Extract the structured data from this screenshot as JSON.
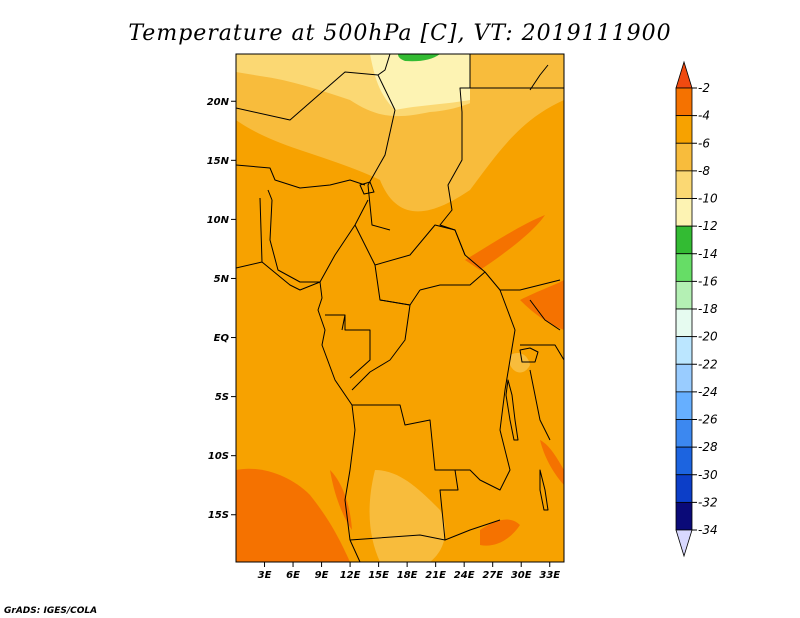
{
  "title": "Temperature at 500hPa [C], VT: 2019111900",
  "credit": "GrADS: IGES/COLA",
  "map": {
    "lon_range": [
      0,
      34.5
    ],
    "lat_range": [
      -19,
      24
    ],
    "x_ticks": [
      {
        "lon": 3,
        "label": "3E"
      },
      {
        "lon": 6,
        "label": "6E"
      },
      {
        "lon": 9,
        "label": "9E"
      },
      {
        "lon": 12,
        "label": "12E"
      },
      {
        "lon": 15,
        "label": "15E"
      },
      {
        "lon": 18,
        "label": "18E"
      },
      {
        "lon": 21,
        "label": "21E"
      },
      {
        "lon": 24,
        "label": "24E"
      },
      {
        "lon": 27,
        "label": "27E"
      },
      {
        "lon": 30,
        "label": "30E"
      },
      {
        "lon": 33,
        "label": "33E"
      }
    ],
    "y_ticks": [
      {
        "lat": 20,
        "label": "20N"
      },
      {
        "lat": 15,
        "label": "15N"
      },
      {
        "lat": 10,
        "label": "10N"
      },
      {
        "lat": 5,
        "label": "5N"
      },
      {
        "lat": 0,
        "label": "EQ"
      },
      {
        "lat": -5,
        "label": "5S"
      },
      {
        "lat": -10,
        "label": "10S"
      },
      {
        "lat": -15,
        "label": "15S"
      }
    ],
    "base_color": "#f7a200"
  },
  "colorbar": {
    "levels": [
      "-2",
      "-4",
      "-6",
      "-8",
      "-10",
      "-12",
      "-14",
      "-16",
      "-18",
      "-20",
      "-22",
      "-24",
      "-26",
      "-28",
      "-30",
      "-32",
      "-34"
    ],
    "colors": [
      "#f04a10",
      "#f57200",
      "#f7a200",
      "#f8bc3c",
      "#fbd873",
      "#fdf3b3",
      "#33bb33",
      "#66dd66",
      "#b4f0b4",
      "#e6fbf0",
      "#bbe6ff",
      "#99ccff",
      "#66afff",
      "#3c88f0",
      "#1c64e0",
      "#0c3ec8",
      "#0a0a78",
      "#d8d8ff"
    ],
    "triangle_top_color": "#f04a10",
    "triangle_bottom_color": "#d8d8ff"
  },
  "chart_data": {
    "type": "heatmap",
    "title": "Temperature at 500hPa [C], VT: 2019111900",
    "variable": "Temperature at 500hPa",
    "units": "C",
    "valid_time": "2019111900",
    "x": [
      "3E",
      "6E",
      "9E",
      "12E",
      "15E",
      "18E",
      "21E",
      "24E",
      "27E",
      "30E",
      "33E"
    ],
    "y": [
      "20N",
      "15N",
      "10N",
      "5N",
      "EQ",
      "5S",
      "10S",
      "15S"
    ],
    "legend_levels": [
      -2,
      -4,
      -6,
      -8,
      -10,
      -12,
      -14,
      -16,
      -18,
      -20,
      -22,
      -24,
      -26,
      -28,
      -30,
      -32,
      -34
    ],
    "value_range_shown": [
      -12,
      -2
    ]
  }
}
